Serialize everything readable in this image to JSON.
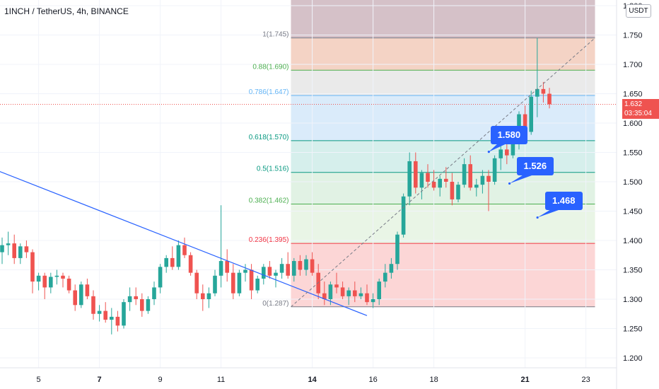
{
  "header": {
    "title": "1INCH / TetherUS, 4h, BINANCE",
    "currency_button": "USDT"
  },
  "last_price": {
    "value": "1.632",
    "countdown": "03:35:04",
    "color": "#ef5350"
  },
  "callouts": [
    {
      "label": "1.580",
      "price": 1.58
    },
    {
      "label": "1.526",
      "price": 1.526
    },
    {
      "label": "1.468",
      "price": 1.468
    }
  ],
  "colors": {
    "up": "#26a69a",
    "down": "#ef5350",
    "trendline": "#2962ff",
    "callout": "#2962ff"
  },
  "chart_data": {
    "type": "candlestick",
    "symbol": "1INCH / TetherUS",
    "interval": "4h",
    "exchange": "BINANCE",
    "ylim": [
      1.175,
      1.81
    ],
    "y_ticks": [
      "1.800",
      "1.750",
      "1.700",
      "1.650",
      "1.600",
      "1.550",
      "1.500",
      "1.450",
      "1.400",
      "1.350",
      "1.300",
      "1.250",
      "1.200"
    ],
    "x_ticks": [
      {
        "label": "5",
        "bar": 6,
        "bold": false
      },
      {
        "label": "7",
        "bar": 16,
        "bold": true
      },
      {
        "label": "9",
        "bar": 26,
        "bold": false
      },
      {
        "label": "11",
        "bar": 36,
        "bold": false
      },
      {
        "label": "14",
        "bar": 51,
        "bold": true
      },
      {
        "label": "16",
        "bar": 61,
        "bold": false
      },
      {
        "label": "18",
        "bar": 71,
        "bold": false
      },
      {
        "label": "21",
        "bar": 86,
        "bold": true
      },
      {
        "label": "23",
        "bar": 96,
        "bold": false
      }
    ],
    "fib_levels": [
      {
        "label": "1(1.745)",
        "price": 1.745,
        "color": "#787b86",
        "fill": "rgba(201,170,180,0.55)"
      },
      {
        "label": "0.88(1.690)",
        "price": 1.69,
        "color": "#4caf50",
        "fill": "rgba(235,175,150,0.55)"
      },
      {
        "label": "0.786(1.647)",
        "price": 1.647,
        "color": "#64b5f6",
        "fill": "rgba(220,220,220,0.6)"
      },
      {
        "label": "0.618(1.570)",
        "price": 1.57,
        "color": "#089981",
        "fill": "rgba(173,210,245,0.45)"
      },
      {
        "label": "0.5(1.516)",
        "price": 1.516,
        "color": "#089981",
        "fill": "rgba(180,225,220,0.55)"
      },
      {
        "label": "0.382(1.462)",
        "price": 1.462,
        "color": "#4caf50",
        "fill": "rgba(200,232,205,0.55)"
      },
      {
        "label": "0.236(1.395)",
        "price": 1.395,
        "color": "#f23645",
        "fill": "rgba(215,237,210,0.55)"
      },
      {
        "label": "0(1.287)",
        "price": 1.287,
        "color": "#787b86",
        "fill": "rgba(250,180,180,0.55)"
      }
    ],
    "fib_top_fill": "rgba(190,160,170,0.65)",
    "fib_range_bars": [
      47.5,
      97.5
    ],
    "trendline": {
      "from": {
        "bar": -1,
        "price": 1.52
      },
      "to": {
        "bar": 60,
        "price": 1.272
      }
    },
    "diagonal": {
      "from": {
        "bar": 47.5,
        "price": 1.287
      },
      "to": {
        "bar": 97.5,
        "price": 1.745
      }
    },
    "candles": [
      [
        1.38,
        1.405,
        1.36,
        1.392
      ],
      [
        1.392,
        1.415,
        1.375,
        1.395
      ],
      [
        1.395,
        1.41,
        1.36,
        1.37
      ],
      [
        1.37,
        1.395,
        1.36,
        1.39
      ],
      [
        1.39,
        1.4,
        1.37,
        1.38
      ],
      [
        1.38,
        1.385,
        1.31,
        1.33
      ],
      [
        1.33,
        1.345,
        1.315,
        1.34
      ],
      [
        1.34,
        1.345,
        1.3,
        1.32
      ],
      [
        1.32,
        1.345,
        1.31,
        1.338
      ],
      [
        1.338,
        1.35,
        1.325,
        1.34
      ],
      [
        1.34,
        1.345,
        1.32,
        1.335
      ],
      [
        1.335,
        1.34,
        1.31,
        1.315
      ],
      [
        1.315,
        1.325,
        1.28,
        1.29
      ],
      [
        1.29,
        1.33,
        1.285,
        1.325
      ],
      [
        1.325,
        1.335,
        1.3,
        1.305
      ],
      [
        1.305,
        1.315,
        1.265,
        1.275
      ],
      [
        1.275,
        1.29,
        1.262,
        1.28
      ],
      [
        1.28,
        1.295,
        1.26,
        1.265
      ],
      [
        1.265,
        1.285,
        1.24,
        1.27
      ],
      [
        1.27,
        1.28,
        1.245,
        1.255
      ],
      [
        1.255,
        1.3,
        1.25,
        1.295
      ],
      [
        1.295,
        1.32,
        1.28,
        1.305
      ],
      [
        1.305,
        1.32,
        1.29,
        1.3
      ],
      [
        1.3,
        1.31,
        1.27,
        1.28
      ],
      [
        1.28,
        1.305,
        1.275,
        1.3
      ],
      [
        1.3,
        1.33,
        1.29,
        1.32
      ],
      [
        1.32,
        1.36,
        1.31,
        1.355
      ],
      [
        1.355,
        1.375,
        1.345,
        1.37
      ],
      [
        1.37,
        1.39,
        1.35,
        1.355
      ],
      [
        1.355,
        1.4,
        1.35,
        1.392
      ],
      [
        1.392,
        1.405,
        1.37,
        1.375
      ],
      [
        1.375,
        1.38,
        1.34,
        1.345
      ],
      [
        1.345,
        1.35,
        1.3,
        1.31
      ],
      [
        1.31,
        1.325,
        1.28,
        1.3
      ],
      [
        1.3,
        1.32,
        1.285,
        1.31
      ],
      [
        1.31,
        1.35,
        1.305,
        1.34
      ],
      [
        1.34,
        1.46,
        1.32,
        1.365
      ],
      [
        1.365,
        1.385,
        1.33,
        1.345
      ],
      [
        1.345,
        1.36,
        1.3,
        1.31
      ],
      [
        1.31,
        1.35,
        1.305,
        1.345
      ],
      [
        1.345,
        1.36,
        1.33,
        1.35
      ],
      [
        1.35,
        1.36,
        1.3,
        1.315
      ],
      [
        1.315,
        1.34,
        1.31,
        1.335
      ],
      [
        1.335,
        1.36,
        1.325,
        1.355
      ],
      [
        1.355,
        1.365,
        1.335,
        1.34
      ],
      [
        1.34,
        1.35,
        1.32,
        1.345
      ],
      [
        1.345,
        1.37,
        1.335,
        1.36
      ],
      [
        1.36,
        1.38,
        1.335,
        1.34
      ],
      [
        1.34,
        1.37,
        1.33,
        1.365
      ],
      [
        1.365,
        1.375,
        1.34,
        1.35
      ],
      [
        1.35,
        1.375,
        1.34,
        1.368
      ],
      [
        1.368,
        1.38,
        1.34,
        1.345
      ],
      [
        1.345,
        1.36,
        1.3,
        1.31
      ],
      [
        1.31,
        1.33,
        1.29,
        1.3
      ],
      [
        1.3,
        1.33,
        1.29,
        1.325
      ],
      [
        1.325,
        1.345,
        1.31,
        1.32
      ],
      [
        1.32,
        1.33,
        1.3,
        1.305
      ],
      [
        1.305,
        1.32,
        1.29,
        1.315
      ],
      [
        1.315,
        1.33,
        1.295,
        1.305
      ],
      [
        1.305,
        1.32,
        1.3,
        1.31
      ],
      [
        1.31,
        1.325,
        1.29,
        1.295
      ],
      [
        1.295,
        1.31,
        1.285,
        1.3
      ],
      [
        1.3,
        1.335,
        1.29,
        1.33
      ],
      [
        1.33,
        1.36,
        1.32,
        1.345
      ],
      [
        1.345,
        1.37,
        1.335,
        1.36
      ],
      [
        1.36,
        1.415,
        1.35,
        1.41
      ],
      [
        1.41,
        1.48,
        1.405,
        1.475
      ],
      [
        1.475,
        1.55,
        1.46,
        1.535
      ],
      [
        1.535,
        1.55,
        1.48,
        1.49
      ],
      [
        1.49,
        1.52,
        1.47,
        1.515
      ],
      [
        1.515,
        1.53,
        1.49,
        1.5
      ],
      [
        1.5,
        1.52,
        1.485,
        1.49
      ],
      [
        1.49,
        1.51,
        1.475,
        1.505
      ],
      [
        1.505,
        1.525,
        1.49,
        1.5
      ],
      [
        1.5,
        1.515,
        1.46,
        1.47
      ],
      [
        1.47,
        1.5,
        1.465,
        1.495
      ],
      [
        1.495,
        1.54,
        1.49,
        1.53
      ],
      [
        1.53,
        1.545,
        1.485,
        1.49
      ],
      [
        1.49,
        1.505,
        1.475,
        1.495
      ],
      [
        1.495,
        1.52,
        1.48,
        1.51
      ],
      [
        1.51,
        1.52,
        1.45,
        1.5
      ],
      [
        1.5,
        1.545,
        1.495,
        1.54
      ],
      [
        1.54,
        1.57,
        1.52,
        1.555
      ],
      [
        1.555,
        1.57,
        1.53,
        1.545
      ],
      [
        1.545,
        1.57,
        1.54,
        1.565
      ],
      [
        1.565,
        1.62,
        1.555,
        1.615
      ],
      [
        1.615,
        1.63,
        1.57,
        1.585
      ],
      [
        1.585,
        1.655,
        1.58,
        1.645
      ],
      [
        1.645,
        1.745,
        1.61,
        1.658
      ],
      [
        1.658,
        1.67,
        1.635,
        1.65
      ],
      [
        1.65,
        1.66,
        1.625,
        1.632
      ]
    ]
  }
}
